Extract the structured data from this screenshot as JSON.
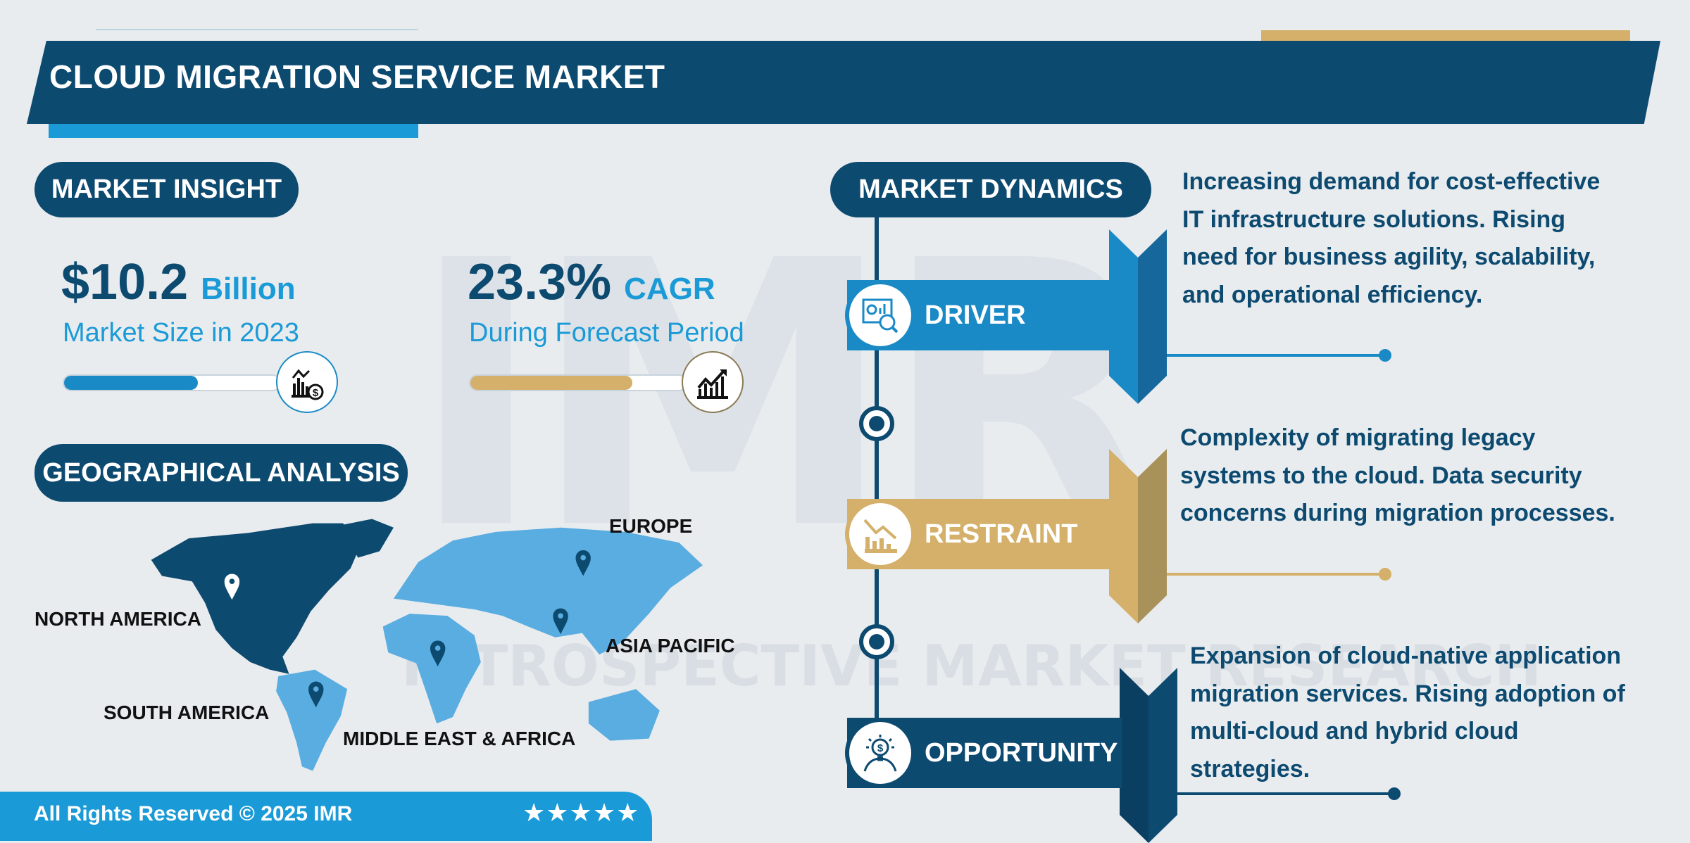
{
  "header": {
    "title": "CLOUD MIGRATION SERVICE MARKET"
  },
  "watermark": {
    "logo": "IMR",
    "text": "INTROSPECTIVE MARKET RESEARCH"
  },
  "market_insight": {
    "heading": "MARKET INSIGHT",
    "size": {
      "value": "$10.2",
      "unit": "Billion",
      "label": "Market Size in 2023",
      "progress": 0.62,
      "icon": "chart-dollar-icon"
    },
    "cagr": {
      "value": "23.3%",
      "unit": "CAGR",
      "label": "During Forecast Period",
      "progress": 0.75,
      "icon": "growth-chart-icon"
    }
  },
  "geo": {
    "heading": "GEOGRAPHICAL ANALYSIS",
    "regions": [
      "NORTH AMERICA",
      "SOUTH AMERICA",
      "MIDDLE EAST & AFRICA",
      "ASIA PACIFIC",
      "EUROPE"
    ]
  },
  "dynamics": {
    "heading": "MARKET DYNAMICS",
    "items": [
      {
        "label": "DRIVER",
        "icon": "analytics-icon",
        "text": "Increasing demand for cost-effective IT infrastructure solutions. Rising need for business agility, scalability, and operational efficiency."
      },
      {
        "label": "RESTRAINT",
        "icon": "declining-chart-icon",
        "text": "Complexity of migrating legacy systems to the cloud. Data security concerns during migration processes."
      },
      {
        "label": "OPPORTUNITY",
        "icon": "idea-dollar-icon",
        "text": "Expansion of cloud-native application migration services. Rising adoption of multi-cloud and hybrid cloud strategies."
      }
    ]
  },
  "footer": {
    "text": "All Rights Reserved © 2025 IMR",
    "stars": "★★★★★"
  },
  "colors": {
    "navy": "#0d4a70",
    "blue": "#1a8ac6",
    "gold": "#d4b06a",
    "map_light": "#5aade0"
  }
}
